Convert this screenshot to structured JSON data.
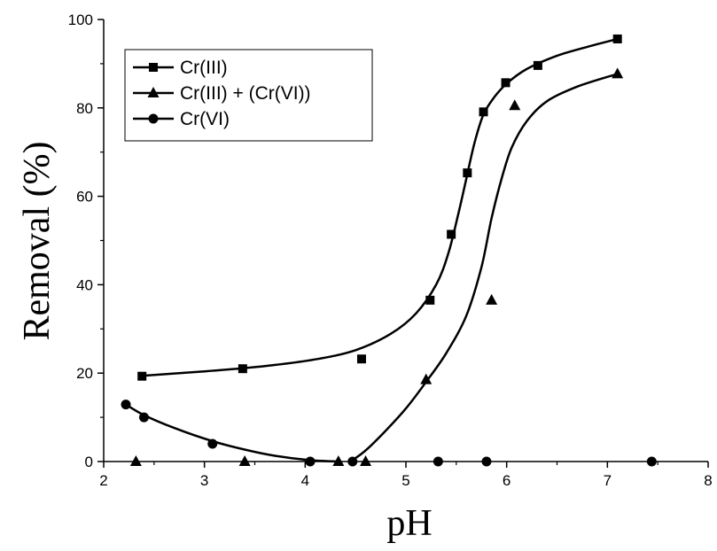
{
  "chart_data": {
    "type": "scatter",
    "xlabel": "pH",
    "ylabel": "Removal (%)",
    "xlim": [
      2,
      8
    ],
    "ylim": [
      0,
      100
    ],
    "xticks": [
      2,
      3,
      4,
      5,
      6,
      7,
      8
    ],
    "yticks": [
      0,
      20,
      40,
      60,
      80,
      100
    ],
    "grid": false,
    "legend_position": "top-left",
    "series": [
      {
        "name": "Cr(III)",
        "marker": "square",
        "color": "#000000",
        "points": [
          [
            2.38,
            19.3
          ],
          [
            3.38,
            21.0
          ],
          [
            4.56,
            23.2
          ],
          [
            5.24,
            36.5
          ],
          [
            5.45,
            51.4
          ],
          [
            5.61,
            65.3
          ],
          [
            5.77,
            79.1
          ],
          [
            5.99,
            85.7
          ],
          [
            6.31,
            89.6
          ],
          [
            7.1,
            95.6
          ]
        ],
        "fit_curve": [
          [
            2.38,
            19.4
          ],
          [
            3.0,
            20.4
          ],
          [
            3.6,
            21.6
          ],
          [
            4.1,
            23.1
          ],
          [
            4.5,
            25.2
          ],
          [
            4.85,
            28.9
          ],
          [
            5.1,
            33.5
          ],
          [
            5.3,
            40.0
          ],
          [
            5.42,
            47.0
          ],
          [
            5.52,
            56.0
          ],
          [
            5.6,
            64.0
          ],
          [
            5.68,
            72.0
          ],
          [
            5.77,
            78.5
          ],
          [
            5.88,
            82.5
          ],
          [
            6.0,
            85.5
          ],
          [
            6.2,
            88.8
          ],
          [
            6.5,
            91.8
          ],
          [
            6.8,
            93.8
          ],
          [
            7.1,
            95.6
          ]
        ]
      },
      {
        "name": "Cr(III) + (Cr(VI))",
        "marker": "triangle",
        "color": "#000000",
        "points": [
          [
            2.32,
            0
          ],
          [
            3.4,
            0
          ],
          [
            4.33,
            0
          ],
          [
            4.6,
            0
          ],
          [
            5.2,
            18.5
          ],
          [
            5.85,
            36.5
          ],
          [
            6.08,
            80.5
          ],
          [
            7.1,
            87.7
          ]
        ],
        "fit_curve": [
          [
            4.45,
            0
          ],
          [
            4.6,
            2.5
          ],
          [
            4.8,
            7.0
          ],
          [
            5.0,
            12.0
          ],
          [
            5.2,
            18.0
          ],
          [
            5.4,
            24.5
          ],
          [
            5.6,
            33.0
          ],
          [
            5.75,
            44.0
          ],
          [
            5.85,
            55.0
          ],
          [
            5.95,
            64.0
          ],
          [
            6.05,
            71.0
          ],
          [
            6.2,
            77.0
          ],
          [
            6.4,
            81.5
          ],
          [
            6.7,
            84.8
          ],
          [
            7.1,
            87.7
          ]
        ]
      },
      {
        "name": "Cr(VI)",
        "marker": "circle",
        "color": "#000000",
        "points": [
          [
            2.22,
            12.9
          ],
          [
            2.4,
            10.0
          ],
          [
            3.08,
            4.0
          ],
          [
            4.05,
            0
          ],
          [
            4.47,
            0
          ],
          [
            5.32,
            0
          ],
          [
            5.8,
            0
          ],
          [
            7.44,
            0
          ]
        ],
        "fit_curve": [
          [
            2.22,
            12.9
          ],
          [
            2.4,
            10.5
          ],
          [
            2.7,
            7.6
          ],
          [
            3.08,
            4.6
          ],
          [
            3.4,
            2.7
          ],
          [
            3.7,
            1.3
          ],
          [
            4.05,
            0.3
          ],
          [
            4.35,
            0
          ]
        ]
      }
    ]
  }
}
